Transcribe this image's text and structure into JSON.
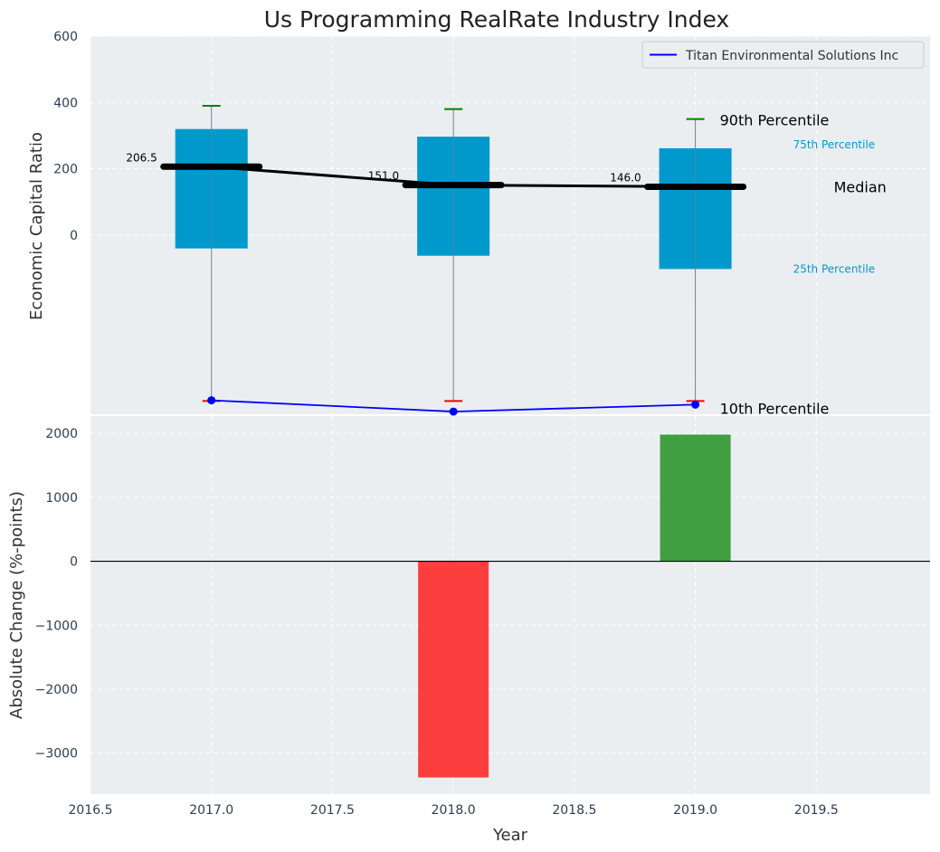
{
  "chart_data": [
    {
      "type": "box",
      "title": "Us Programming RealRate Industry Index",
      "xlabel": "",
      "ylabel": "Economic Capital Ratio",
      "ylim": [
        -540,
        600
      ],
      "yticks": [
        0,
        200,
        400,
        600
      ],
      "xlim": [
        2016.5,
        2019.97
      ],
      "x": [
        2017,
        2018,
        2019
      ],
      "p10": [
        -500,
        -500,
        -500
      ],
      "p25": [
        -40,
        -62,
        -102
      ],
      "median": [
        206.5,
        151.0,
        146.0
      ],
      "p75": [
        320,
        297,
        262
      ],
      "p90": [
        390,
        380,
        350
      ],
      "median_labels": [
        "206.5",
        "151.0",
        "146.0"
      ],
      "series": [
        {
          "name": "Titan Environmental Solutions Inc",
          "values": [
            -498,
            -532,
            -511
          ],
          "color": "#0000ff"
        }
      ],
      "annotations": {
        "p90": "90th Percentile",
        "p75": "75th Percentile",
        "median": "Median",
        "p25": "25th Percentile",
        "p10": "10th Percentile"
      },
      "legend": "top-right",
      "grid": true,
      "colors": {
        "box": "#0099cc",
        "median": "#000000",
        "p90_cap": "#008000",
        "p10_cap": "#ff0000",
        "whisker": "#708090",
        "annotation_small": "#0099cc"
      }
    },
    {
      "type": "bar",
      "xlabel": "Year",
      "ylabel": "Absolute Change (%-points)",
      "ylim": [
        -3640,
        2270
      ],
      "yticks": [
        -3000,
        -2000,
        -1000,
        0,
        1000,
        2000
      ],
      "xlim": [
        2016.5,
        2019.97
      ],
      "xticks": [
        2016.5,
        2017.0,
        2017.5,
        2018.0,
        2018.5,
        2019.0,
        2019.5
      ],
      "x": [
        2018,
        2019
      ],
      "values": [
        -3380,
        1980
      ],
      "colors": [
        "#ff2a2a",
        "#2e962e"
      ],
      "grid": true
    }
  ]
}
